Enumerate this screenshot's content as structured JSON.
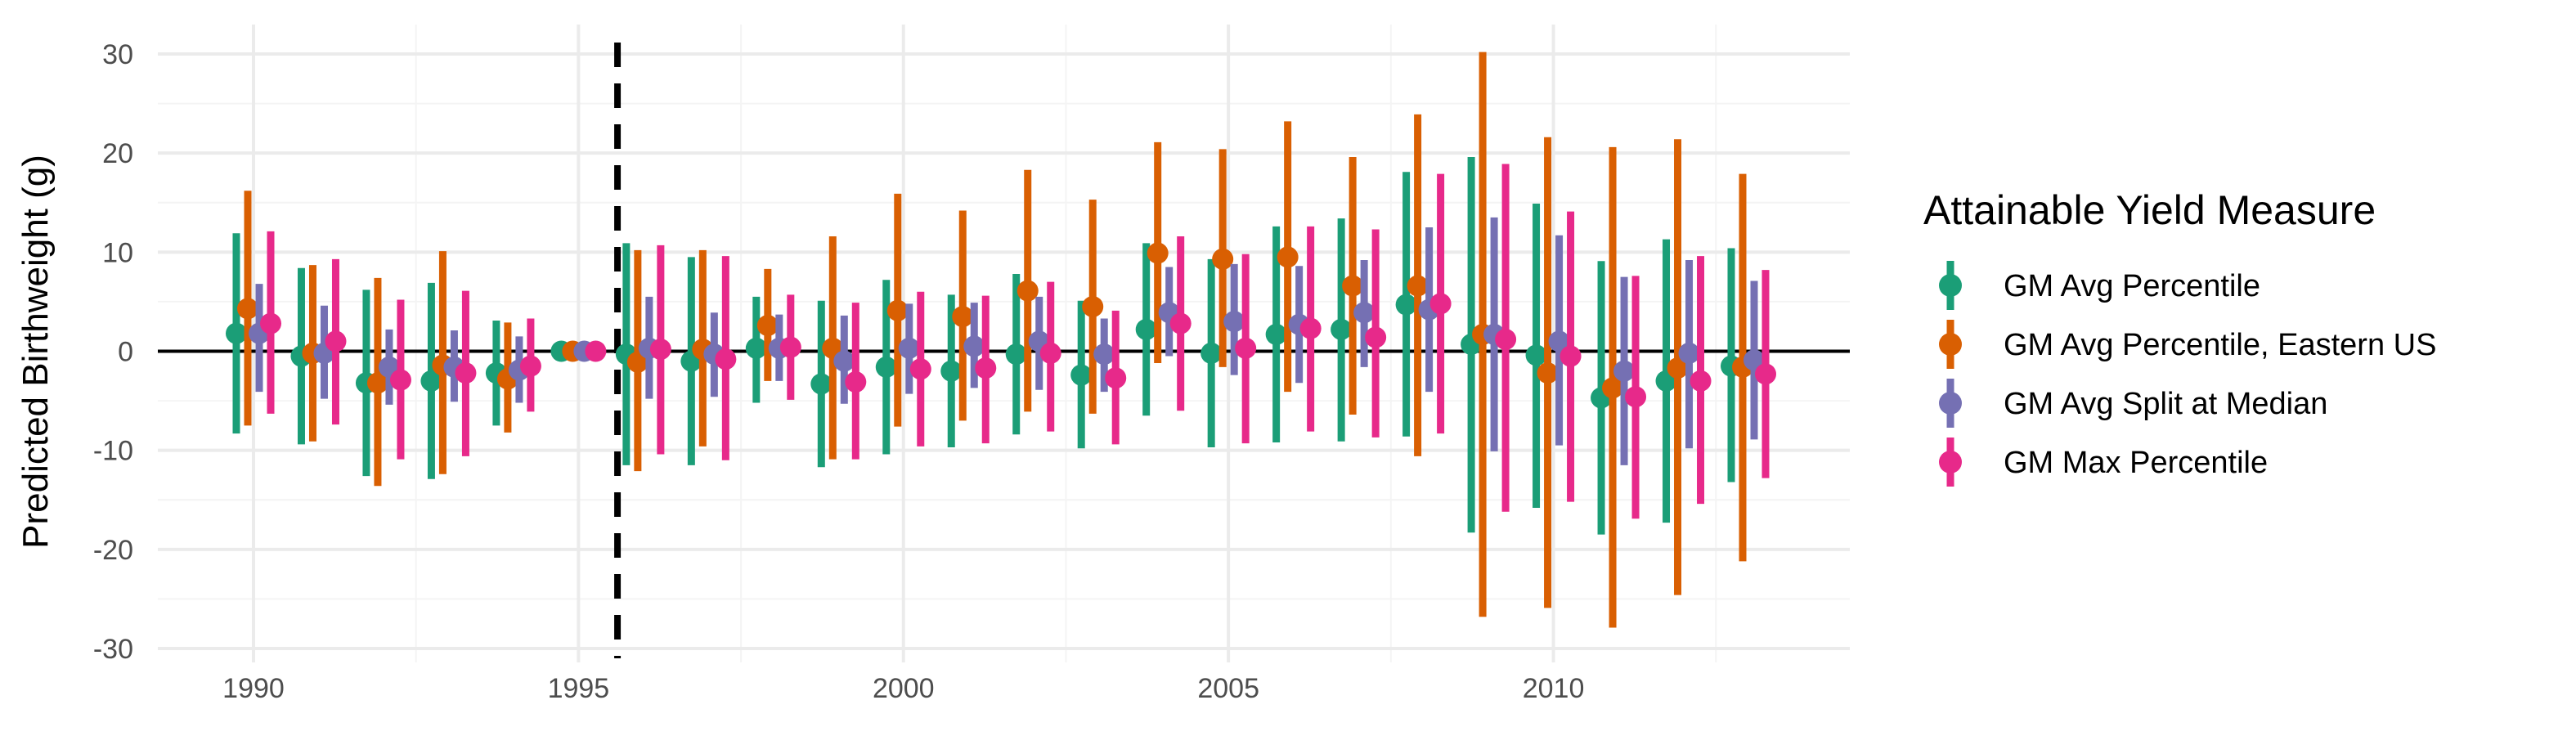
{
  "chart_data": {
    "type": "scatter",
    "subtype": "point-range",
    "title": "",
    "xlabel": "",
    "ylabel": "Predicted Birthweight (g)",
    "xlim": [
      1988.6,
      1914.5
    ],
    "ylim": [
      -32,
      33
    ],
    "x_ticks": [
      1990,
      1995,
      2000,
      2005,
      2010
    ],
    "y_ticks": [
      -30,
      -20,
      -10,
      0,
      10,
      20,
      30
    ],
    "x_tick_labels": [
      "1990",
      "1995",
      "2000",
      "2005",
      "2010"
    ],
    "y_tick_labels": [
      "-30",
      "-20",
      "-10",
      "0",
      "10",
      "20",
      "30"
    ],
    "grid": true,
    "reference_hline": 0,
    "reference_vline": 1995.6,
    "legend": {
      "title": "Attainable Yield Measure",
      "position": "right"
    },
    "years": [
      1990,
      1991,
      1992,
      1993,
      1994,
      1995,
      1996,
      1997,
      1998,
      1999,
      2000,
      2001,
      2002,
      2003,
      2004,
      2005,
      2006,
      2007,
      2008,
      2009,
      2010,
      2011,
      2012,
      2013
    ],
    "series": [
      {
        "name": "GM Avg Percentile",
        "color": "#1b9e77",
        "estimate": [
          1.8,
          -0.5,
          -3.2,
          -3.0,
          -2.2,
          0,
          -0.3,
          -1.0,
          0.3,
          -3.3,
          -1.6,
          -2.0,
          -0.3,
          -2.4,
          2.2,
          -0.2,
          1.7,
          2.2,
          4.7,
          0.7,
          -0.4,
          -4.7,
          -3.0,
          -1.5
        ],
        "lower": [
          -8.3,
          -9.4,
          -12.6,
          -12.9,
          -7.5,
          0,
          -11.5,
          -11.5,
          -5.2,
          -11.7,
          -10.4,
          -9.7,
          -8.4,
          -9.8,
          -6.5,
          -9.7,
          -9.2,
          -9.1,
          -8.6,
          -18.3,
          -15.8,
          -18.5,
          -17.3,
          -13.2
        ],
        "upper": [
          11.9,
          8.4,
          6.2,
          6.9,
          3.1,
          0,
          10.9,
          9.5,
          5.5,
          5.1,
          7.2,
          5.7,
          7.8,
          5.1,
          10.9,
          9.3,
          12.6,
          13.4,
          18.1,
          19.6,
          14.9,
          9.1,
          11.3,
          10.4
        ]
      },
      {
        "name": "GM Avg Percentile, Eastern US",
        "color": "#d95f02",
        "estimate": [
          4.3,
          -0.2,
          -3.2,
          -1.4,
          -2.8,
          0,
          -1.1,
          0.2,
          2.6,
          0.3,
          4.1,
          3.5,
          6.1,
          4.5,
          9.9,
          9.3,
          9.5,
          6.6,
          6.6,
          1.7,
          -2.2,
          -3.7,
          -1.7,
          -1.6
        ],
        "lower": [
          -7.5,
          -9.1,
          -13.6,
          -12.4,
          -8.2,
          0,
          -12.1,
          -9.6,
          -3.0,
          -10.9,
          -7.6,
          -7.0,
          -6.1,
          -6.3,
          -1.2,
          -1.6,
          -4.1,
          -6.4,
          -10.6,
          -26.8,
          -25.9,
          -27.9,
          -24.6,
          -21.2
        ],
        "upper": [
          16.2,
          8.7,
          7.4,
          10.1,
          2.9,
          0,
          10.2,
          10.2,
          8.3,
          11.6,
          15.9,
          14.2,
          18.3,
          15.3,
          21.1,
          20.4,
          23.2,
          19.6,
          23.9,
          30.2,
          21.6,
          20.6,
          21.4,
          17.9
        ]
      },
      {
        "name": "GM Avg Split at Median",
        "color": "#7570b3",
        "estimate": [
          1.8,
          -0.2,
          -1.6,
          -1.6,
          -1.9,
          0,
          0.3,
          -0.3,
          0.3,
          -1.0,
          0.3,
          0.5,
          1.0,
          -0.3,
          3.9,
          3.0,
          2.7,
          3.9,
          4.2,
          1.7,
          1.0,
          -2.0,
          -0.2,
          -0.9
        ],
        "lower": [
          -4.1,
          -4.8,
          -5.4,
          -5.1,
          -5.2,
          0,
          -4.8,
          -4.6,
          -3.0,
          -5.3,
          -4.3,
          -3.7,
          -3.9,
          -4.1,
          -0.5,
          -2.4,
          -3.2,
          -1.6,
          -4.1,
          -10.1,
          -9.5,
          -11.5,
          -9.8,
          -8.9
        ],
        "upper": [
          6.8,
          4.6,
          2.2,
          2.1,
          1.5,
          0,
          5.5,
          3.9,
          3.7,
          3.6,
          4.8,
          4.9,
          5.5,
          3.3,
          8.5,
          8.8,
          8.6,
          9.2,
          12.5,
          13.5,
          11.7,
          7.5,
          9.2,
          7.1
        ]
      },
      {
        "name": "GM Max Percentile",
        "color": "#e7298a",
        "estimate": [
          2.8,
          1.0,
          -2.9,
          -2.2,
          -1.5,
          0,
          0.2,
          -0.8,
          0.4,
          -3.1,
          -1.8,
          -1.7,
          -0.2,
          -2.7,
          2.8,
          0.3,
          2.3,
          1.4,
          4.8,
          1.2,
          -0.5,
          -4.6,
          -3.0,
          -2.3
        ],
        "lower": [
          -6.3,
          -7.4,
          -10.9,
          -10.6,
          -6.1,
          0,
          -10.4,
          -11.0,
          -4.9,
          -10.9,
          -9.6,
          -9.3,
          -8.1,
          -9.4,
          -6.0,
          -9.3,
          -8.1,
          -8.7,
          -8.3,
          -16.2,
          -15.2,
          -16.9,
          -15.4,
          -12.8
        ],
        "upper": [
          12.1,
          9.3,
          5.2,
          6.1,
          3.3,
          0,
          10.7,
          9.6,
          5.7,
          4.9,
          6.0,
          5.6,
          7.0,
          4.1,
          11.6,
          9.8,
          12.6,
          12.3,
          17.9,
          18.9,
          14.1,
          7.6,
          9.6,
          8.2
        ]
      }
    ]
  }
}
